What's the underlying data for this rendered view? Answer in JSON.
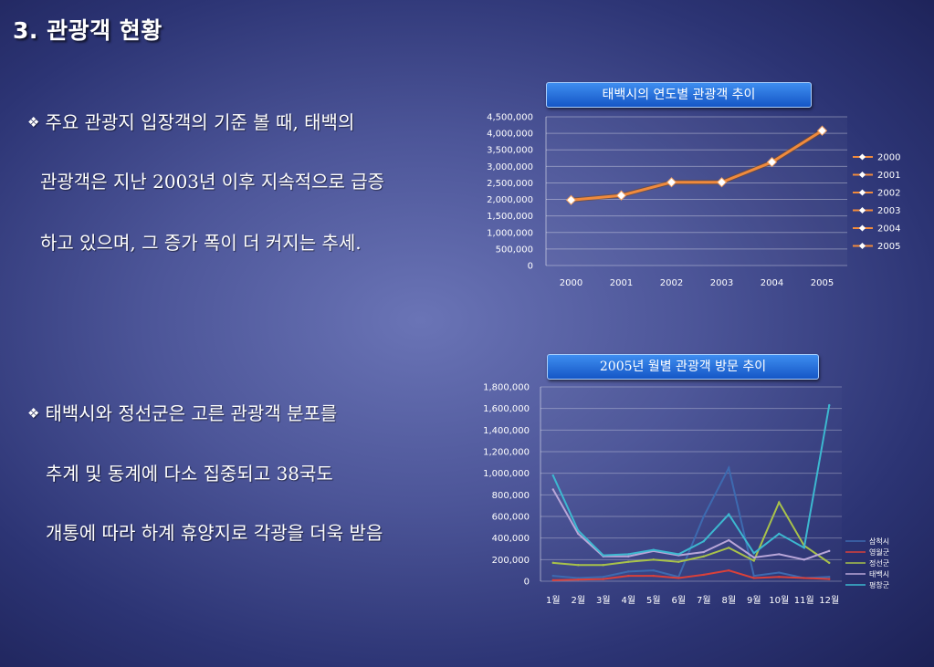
{
  "slide": {
    "title": "3. 관광객 현황",
    "bullets": [
      {
        "mark": "❖",
        "lines": [
          "주요 관광지 입장객의 기준 볼 때, 태백의",
          "관광객은 지난 2003년 이후 지속적으로 급증",
          "하고 있으며, 그 증가 폭이 더 커지는 추세."
        ]
      },
      {
        "mark": "❖",
        "lines": [
          "태백시와 정선군은 고른 관광객 분포를",
          "추계 및 동계에 다소 집중되고 38국도",
          "개통에 따라 하계 휴양지로 각광을 더욱 받음"
        ]
      }
    ]
  },
  "chart_data": [
    {
      "type": "line",
      "title": "태백시의 연도별 관광객 추이",
      "categories": [
        "2000",
        "2001",
        "2002",
        "2003",
        "2004",
        "2005"
      ],
      "values": [
        1980000,
        2120000,
        2520000,
        2520000,
        3130000,
        4080000
      ],
      "ylim": [
        0,
        4500000
      ],
      "yticks": [
        "0",
        "500,000",
        "1,000,000",
        "1,500,000",
        "2,000,000",
        "2,500,000",
        "3,000,000",
        "3,500,000",
        "4,000,000",
        "4,500,000"
      ],
      "legend": [
        "2000",
        "2001",
        "2002",
        "2003",
        "2004",
        "2005"
      ],
      "legend_position": "right",
      "line_color": "#f08a3c",
      "grid": true
    },
    {
      "type": "line",
      "title": "2005년 월별 관광객 방문 추이",
      "categories": [
        "1월",
        "2월",
        "3월",
        "4월",
        "5월",
        "6월",
        "7월",
        "8월",
        "9월",
        "10월",
        "11월",
        "12월"
      ],
      "ylim": [
        0,
        1800000
      ],
      "yticks": [
        "0",
        "200,000",
        "400,000",
        "600,000",
        "800,000",
        "1,000,000",
        "1,200,000",
        "1,400,000",
        "1,600,000",
        "1,800,000"
      ],
      "legend_position": "right",
      "grid": true,
      "series": [
        {
          "name": "삼척시",
          "color": "#3d6ab0",
          "values": [
            50000,
            30000,
            40000,
            90000,
            100000,
            40000,
            600000,
            1050000,
            50000,
            80000,
            30000,
            40000
          ]
        },
        {
          "name": "영월군",
          "color": "#d9403a",
          "values": [
            10000,
            15000,
            20000,
            50000,
            50000,
            30000,
            60000,
            100000,
            30000,
            40000,
            30000,
            20000
          ]
        },
        {
          "name": "정선군",
          "color": "#a8c24a",
          "values": [
            170000,
            150000,
            150000,
            180000,
            200000,
            180000,
            230000,
            310000,
            190000,
            730000,
            330000,
            170000
          ]
        },
        {
          "name": "태백시",
          "color": "#b8a6d8",
          "values": [
            850000,
            440000,
            230000,
            230000,
            280000,
            240000,
            270000,
            380000,
            220000,
            250000,
            200000,
            280000
          ]
        },
        {
          "name": "평창군",
          "color": "#3cb8d0",
          "values": [
            980000,
            470000,
            240000,
            250000,
            290000,
            250000,
            370000,
            620000,
            260000,
            440000,
            310000,
            1630000
          ]
        }
      ]
    }
  ]
}
